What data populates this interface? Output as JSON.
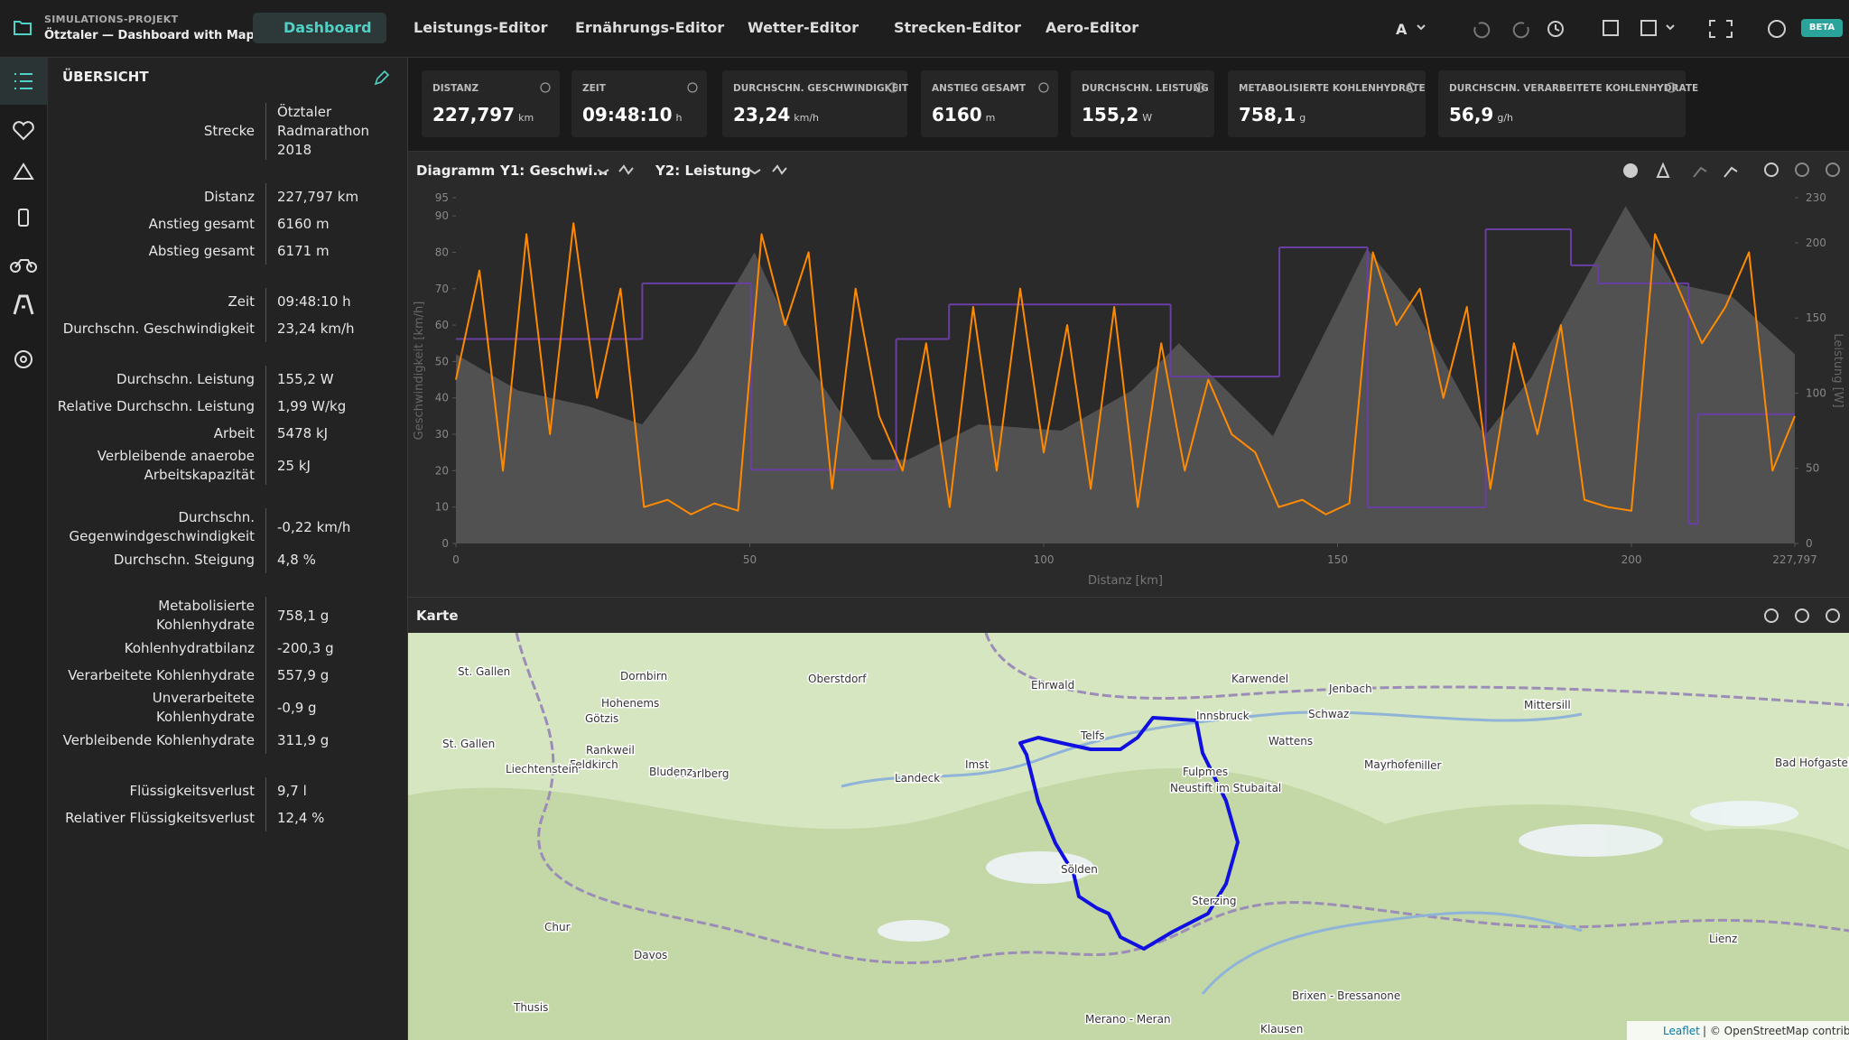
{
  "topbar": {
    "project_label": "SIMULATIONS-PROJEKT",
    "project_title": "Ötztaler — Dashboard with Map",
    "tabs": [
      "Dashboard",
      "Leistungs-Editor",
      "Ernährungs-Editor",
      "Wetter-Editor",
      "Strecken-Editor",
      "Aero-Editor"
    ],
    "badge": "BETA"
  },
  "overview": {
    "title": "ÜBERSICHT",
    "groups": [
      [
        {
          "label": "Strecke",
          "value": "Ötztaler Radmarathon 2018"
        }
      ],
      [
        {
          "label": "Distanz",
          "value": "227,797 km"
        },
        {
          "label": "Anstieg gesamt",
          "value": "6160 m"
        },
        {
          "label": "Abstieg gesamt",
          "value": "6171 m"
        }
      ],
      [
        {
          "label": "Zeit",
          "value": "09:48:10 h"
        },
        {
          "label": "Durchschn. Geschwindigkeit",
          "value": "23,24 km/h"
        }
      ],
      [
        {
          "label": "Durchschn. Leistung",
          "value": "155,2 W"
        },
        {
          "label": "Relative Durchschn. Leistung",
          "value": "1,99 W/kg"
        },
        {
          "label": "Arbeit",
          "value": "5478 kJ"
        },
        {
          "label": "Verbleibende anaerobe Arbeitskapazität",
          "value": "25 kJ"
        }
      ],
      [
        {
          "label": "Durchschn. Gegenwindgeschwindigkeit",
          "value": "-0,22 km/h"
        },
        {
          "label": "Durchschn. Steigung",
          "value": "4,8 %"
        }
      ],
      [
        {
          "label": "Metabolisierte Kohlenhydrate",
          "value": "758,1 g"
        },
        {
          "label": "Kohlenhydratbilanz",
          "value": "-200,3 g"
        },
        {
          "label": "Verarbeitete Kohlenhydrate",
          "value": "557,9 g"
        },
        {
          "label": "Unverarbeitete Kohlenhydrate",
          "value": "-0,9 g"
        },
        {
          "label": "Verbleibende Kohlenhydrate",
          "value": "311,9 g"
        }
      ],
      [
        {
          "label": "Flüssigkeitsverlust",
          "value": "9,7 l"
        },
        {
          "label": "Relativer Flüssigkeitsverlust",
          "value": "12,4 %"
        }
      ]
    ]
  },
  "kpis": [
    {
      "label": "DISTANZ",
      "value": "227,797",
      "unit": "km"
    },
    {
      "label": "ZEIT",
      "value": "09:48:10",
      "unit": "h"
    },
    {
      "label": "DURCHSCHN. GESCHWINDIGKEIT",
      "value": "23,24",
      "unit": "km/h"
    },
    {
      "label": "ANSTIEG GESAMT",
      "value": "6160",
      "unit": "m"
    },
    {
      "label": "DURCHSCHN. LEISTUNG",
      "value": "155,2",
      "unit": "W"
    },
    {
      "label": "METABOLISIERTE KOHLENHYDRATE",
      "value": "758,1",
      "unit": "g"
    },
    {
      "label": "DURCHSCHN. VERARBEITETE KOHLENHYDRATE",
      "value": "56,9",
      "unit": "g/h"
    }
  ],
  "diagram": {
    "title": "Diagramm",
    "y1_selector": "Y1: Geschwi...",
    "y2_selector": "Y2: Leistung",
    "y_label": "Geschwindigkeit [km/h]",
    "y2_label": "Leistung [W]",
    "x_label": "Distanz [km]",
    "xlim": [
      0,
      227.797
    ],
    "ylim": [
      0,
      95
    ],
    "y2lim": [
      0,
      230
    ],
    "xticks": [
      0,
      50,
      100,
      150,
      200,
      {
        "value": 227.797,
        "label": "227,797"
      }
    ],
    "yticks": [
      0,
      10,
      20,
      30,
      40,
      50,
      60,
      70,
      80,
      90,
      95
    ],
    "y2ticks": [
      0,
      50,
      100,
      150,
      200,
      230
    ],
    "elevation": {
      "color": "#585858",
      "x": [
        0,
        10.6,
        22.7,
        31.7,
        40.7,
        50.8,
        58.8,
        70.8,
        76.9,
        88.9,
        103,
        115,
        123,
        139,
        155,
        163,
        175,
        183,
        199,
        207,
        217,
        227.797
      ],
      "values": [
        52,
        42,
        37.6,
        32.7,
        52,
        80,
        52,
        23,
        23,
        32.7,
        31,
        42,
        55,
        29.5,
        81,
        65,
        29.5,
        45.7,
        92.7,
        71.6,
        68,
        52
      ]
    },
    "power": {
      "color": "#6a3fa3",
      "axis": "y2",
      "edges": [
        0,
        31.7,
        50.2,
        74.9,
        83.9,
        121.6,
        140.1,
        155.1,
        175.2,
        189.7,
        194.3,
        209.7,
        211.3,
        227.797
      ],
      "values": [
        136,
        173,
        49,
        136,
        159,
        111,
        197,
        24,
        209,
        185,
        173,
        13,
        86
      ]
    },
    "speed": {
      "color": "#ff8a00",
      "x": [
        0,
        4,
        8,
        12,
        16,
        20,
        24,
        28,
        32,
        36,
        40,
        44,
        48,
        52,
        56,
        60,
        64,
        68,
        72,
        76,
        80,
        84,
        88,
        92,
        96,
        100,
        104,
        108,
        112,
        116,
        120,
        124,
        128,
        132,
        136,
        140,
        144,
        148,
        152,
        156,
        160,
        164,
        168,
        172,
        176,
        180,
        184,
        188,
        192,
        196,
        200,
        204,
        208,
        212,
        216,
        220,
        224,
        227.797
      ],
      "values": [
        45,
        75,
        20,
        85,
        30,
        88,
        40,
        70,
        10,
        12,
        8,
        11,
        9,
        85,
        60,
        80,
        15,
        70,
        35,
        20,
        55,
        10,
        65,
        20,
        70,
        25,
        60,
        15,
        65,
        10,
        55,
        20,
        45,
        30,
        25,
        10,
        12,
        8,
        11,
        80,
        60,
        70,
        40,
        65,
        15,
        55,
        30,
        60,
        12,
        10,
        9,
        85,
        70,
        55,
        65,
        80,
        20,
        35
      ]
    }
  },
  "map": {
    "title": "Karte",
    "labels": [
      "St. Gallen",
      "Dornbirn",
      "Oberstdorf",
      "Ehrwald",
      "Karwendel",
      "Jenbach",
      "Hohenems",
      "Schwaz",
      "Götzis",
      "Telfs",
      "Wattens",
      "Innsbruck",
      "Mittersill",
      "Rankweil",
      "Imst",
      "Feldkirch",
      "Zell am Ziller",
      "Vorarlberg",
      "St. Gallen",
      "Liechtenstein",
      "Bludenz",
      "Landeck",
      "Fulpmes",
      "Mayrhofen",
      "Neustift im Stubaital",
      "Bad Hofgastein",
      "Sölden",
      "Chur",
      "Sterzing",
      "Davos",
      "Brixen - Bressanone",
      "Merano - Meran",
      "Klausen",
      "Thusis",
      "Lienz"
    ],
    "attribution_link": "Leaflet",
    "attribution_text": "| © OpenStreetMap contributors"
  }
}
